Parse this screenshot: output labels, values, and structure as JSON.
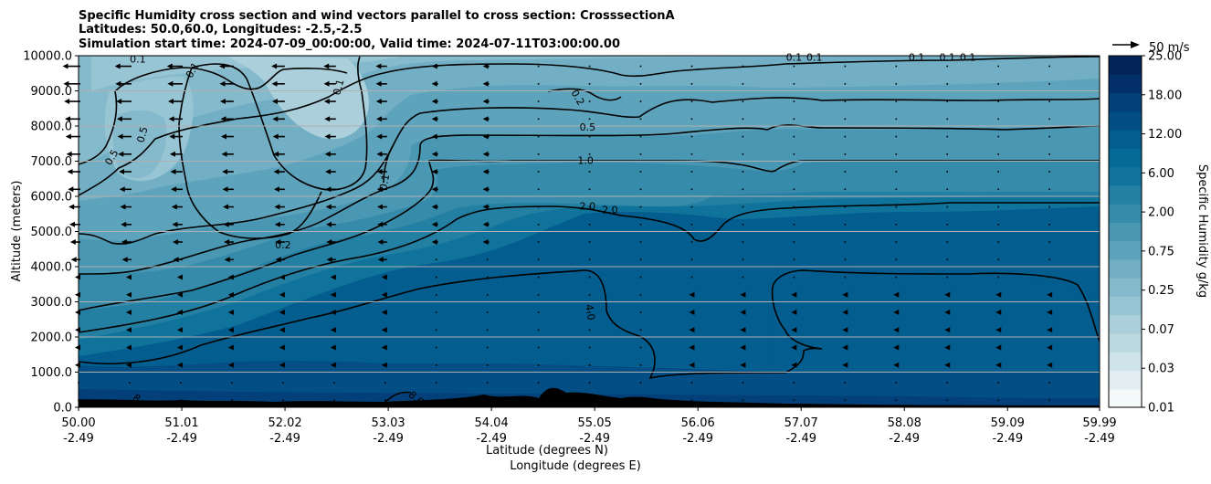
{
  "chart_data": {
    "type": "contourf",
    "title_lines": [
      "Specific Humidity cross section and wind vectors parallel to cross section: CrosssectionA",
      "Latitudes: 50.0,60.0, Longitudes: -2.5,-2.5",
      "Simulation start time: 2024-07-09_00:00:00, Valid time: 2024-07-11T03:00:00.00"
    ],
    "ylabel": "Altitude (meters)",
    "xlabel_lines": [
      "Latitude (degrees N)",
      "Longitude (degrees E)"
    ],
    "ylim": [
      0,
      10000
    ],
    "xlim": [
      50.0,
      59.99
    ],
    "y_ticks": [
      {
        "value": 0,
        "label": "0.0"
      },
      {
        "value": 1000,
        "label": "1000.0"
      },
      {
        "value": 2000,
        "label": "2000.0"
      },
      {
        "value": 3000,
        "label": "3000.0"
      },
      {
        "value": 4000,
        "label": "4000.0"
      },
      {
        "value": 5000,
        "label": "5000.0"
      },
      {
        "value": 6000,
        "label": "6000.0"
      },
      {
        "value": 7000,
        "label": "7000.0"
      },
      {
        "value": 8000,
        "label": "8000.0"
      },
      {
        "value": 9000,
        "label": "9000.0"
      },
      {
        "value": 10000,
        "label": "10000.0"
      }
    ],
    "x_ticks": [
      {
        "value": 50.0,
        "lat": "50.00",
        "lon": "-2.49"
      },
      {
        "value": 51.01,
        "lat": "51.01",
        "lon": "-2.49"
      },
      {
        "value": 52.02,
        "lat": "52.02",
        "lon": "-2.49"
      },
      {
        "value": 53.03,
        "lat": "53.03",
        "lon": "-2.49"
      },
      {
        "value": 54.04,
        "lat": "54.04",
        "lon": "-2.49"
      },
      {
        "value": 55.05,
        "lat": "55.05",
        "lon": "-2.49"
      },
      {
        "value": 56.06,
        "lat": "56.06",
        "lon": "-2.49"
      },
      {
        "value": 57.07,
        "lat": "57.07",
        "lon": "-2.49"
      },
      {
        "value": 58.08,
        "lat": "58.08",
        "lon": "-2.49"
      },
      {
        "value": 59.09,
        "lat": "59.09",
        "lon": "-2.49"
      },
      {
        "value": 59.99,
        "lat": "59.99",
        "lon": "-2.49"
      }
    ],
    "horizontal_grid": true,
    "colorbar": {
      "label": "Specific Humidity g/kg",
      "levels": [
        "0.01",
        "0.02",
        "0.03",
        "0.05",
        "0.07",
        "0.1",
        "0.25",
        "0.5",
        "0.75",
        "1.0",
        "2.00",
        "4.0",
        "6.00",
        "8.0",
        "12.00",
        "15.0",
        "18.00",
        "21.0",
        "25.00"
      ],
      "tick_labels": [
        "0.01",
        "0.03",
        "0.07",
        "0.25",
        "0.75",
        "2.00",
        "6.00",
        "12.00",
        "18.00",
        "25.00"
      ],
      "colors": [
        "#f4f9fa",
        "#e2eef2",
        "#cfe4ea",
        "#bddae3",
        "#abd0dc",
        "#98c5d4",
        "#85bacc",
        "#72afc4",
        "#5ea3bc",
        "#4a97b3",
        "#368baa",
        "#2480a3",
        "#0f739b",
        "#056a95",
        "#035d8e",
        "#034f85",
        "#033f78",
        "#032f69",
        "#022458"
      ]
    },
    "contour_labels": [
      {
        "text": "0.1",
        "x": 50.58,
        "y": 9880,
        "rot": 0
      },
      {
        "text": "0.1",
        "x": 51.12,
        "y": 9580,
        "rot": -60
      },
      {
        "text": "0.1",
        "x": 52.55,
        "y": 9100,
        "rot": -75
      },
      {
        "text": "0.5",
        "x": 50.63,
        "y": 7750,
        "rot": -75
      },
      {
        "text": "0.5",
        "x": 50.33,
        "y": 7100,
        "rot": -60
      },
      {
        "text": "0.1",
        "x": 53.0,
        "y": 6400,
        "rot": -80
      },
      {
        "text": "0.2",
        "x": 52.0,
        "y": 4600,
        "rot": 0
      },
      {
        "text": "0.2",
        "x": 54.88,
        "y": 8800,
        "rot": 60
      },
      {
        "text": "0.5",
        "x": 54.98,
        "y": 7950,
        "rot": 0
      },
      {
        "text": "1.0",
        "x": 54.96,
        "y": 7000,
        "rot": 0
      },
      {
        "text": "2.0",
        "x": 54.98,
        "y": 5700,
        "rot": 0
      },
      {
        "text": "2.0",
        "x": 55.2,
        "y": 5600,
        "rot": 0
      },
      {
        "text": "4.0",
        "x": 55.0,
        "y": 2700,
        "rot": 80
      },
      {
        "text": "0.1",
        "x": 57.0,
        "y": 9930,
        "rot": 0
      },
      {
        "text": "0.1",
        "x": 57.2,
        "y": 9930,
        "rot": 0
      },
      {
        "text": "0.1",
        "x": 58.2,
        "y": 9930,
        "rot": 0
      },
      {
        "text": "0.1",
        "x": 58.5,
        "y": 9930,
        "rot": 0
      },
      {
        "text": "0.1",
        "x": 58.7,
        "y": 9930,
        "rot": 0
      },
      {
        "text": "8.0",
        "x": 50.6,
        "y": 160,
        "rot": 40
      },
      {
        "text": "8.0",
        "x": 53.3,
        "y": 240,
        "rot": 40
      }
    ],
    "quiver_reference": {
      "label": "50 m/s",
      "speed": 50
    }
  }
}
